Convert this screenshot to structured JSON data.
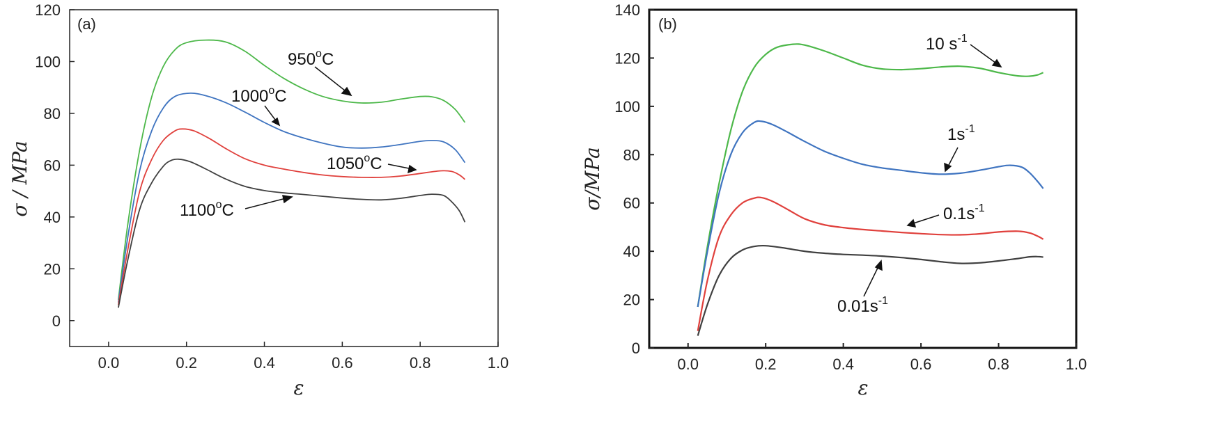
{
  "chart_data": [
    {
      "type": "line",
      "panel_label": "(a)",
      "xlabel": "ε",
      "ylabel": "σ / MPa",
      "xlim": [
        -0.1,
        1.0
      ],
      "ylim": [
        -10,
        120
      ],
      "xticks": [
        0.0,
        0.2,
        0.4,
        0.6,
        0.8,
        1.0
      ],
      "xtick_labels": [
        "0.0",
        "0.2",
        "0.4",
        "0.6",
        "0.8",
        "1.0"
      ],
      "yticks": [
        0,
        20,
        40,
        60,
        80,
        100,
        120
      ],
      "ytick_labels": [
        "0",
        "20",
        "40",
        "60",
        "80",
        "100",
        "120"
      ],
      "grid": false,
      "series": [
        {
          "label_main": "950",
          "label_sup": "o",
          "label_tail": "C",
          "color": "#4db84a",
          "points": [
            [
              0.025,
              8
            ],
            [
              0.05,
              38
            ],
            [
              0.08,
              66
            ],
            [
              0.11,
              86
            ],
            [
              0.14,
              98
            ],
            [
              0.17,
              104.5
            ],
            [
              0.2,
              107.3
            ],
            [
              0.25,
              108.3
            ],
            [
              0.3,
              107.6
            ],
            [
              0.35,
              104
            ],
            [
              0.4,
              98.5
            ],
            [
              0.45,
              93.5
            ],
            [
              0.5,
              89.5
            ],
            [
              0.55,
              86.5
            ],
            [
              0.6,
              84.8
            ],
            [
              0.65,
              84
            ],
            [
              0.7,
              84.3
            ],
            [
              0.75,
              85.5
            ],
            [
              0.8,
              86.5
            ],
            [
              0.83,
              86.4
            ],
            [
              0.86,
              85
            ],
            [
              0.89,
              81.5
            ],
            [
              0.915,
              76.5
            ]
          ]
        },
        {
          "label_main": "1000",
          "label_sup": "o",
          "label_tail": "C",
          "color": "#3f74c0",
          "points": [
            [
              0.025,
              7
            ],
            [
              0.05,
              33
            ],
            [
              0.08,
              58
            ],
            [
              0.11,
              73
            ],
            [
              0.14,
              82
            ],
            [
              0.17,
              86.5
            ],
            [
              0.21,
              87.8
            ],
            [
              0.25,
              86.8
            ],
            [
              0.3,
              84.2
            ],
            [
              0.35,
              80.5
            ],
            [
              0.4,
              76.5
            ],
            [
              0.45,
              73
            ],
            [
              0.5,
              70.5
            ],
            [
              0.55,
              68.5
            ],
            [
              0.6,
              67
            ],
            [
              0.65,
              66.6
            ],
            [
              0.7,
              67
            ],
            [
              0.75,
              68
            ],
            [
              0.8,
              69.2
            ],
            [
              0.83,
              69.5
            ],
            [
              0.86,
              69
            ],
            [
              0.89,
              66
            ],
            [
              0.915,
              61
            ]
          ]
        },
        {
          "label_main": "1050",
          "label_sup": "o",
          "label_tail": "C",
          "color": "#e0403c",
          "points": [
            [
              0.025,
              6
            ],
            [
              0.05,
              28
            ],
            [
              0.08,
              50
            ],
            [
              0.11,
              62
            ],
            [
              0.14,
              69.5
            ],
            [
              0.17,
              73.2
            ],
            [
              0.19,
              74
            ],
            [
              0.22,
              73.2
            ],
            [
              0.26,
              70.2
            ],
            [
              0.3,
              66.5
            ],
            [
              0.35,
              62.5
            ],
            [
              0.4,
              60
            ],
            [
              0.45,
              58.5
            ],
            [
              0.5,
              57.2
            ],
            [
              0.55,
              56.2
            ],
            [
              0.6,
              55.6
            ],
            [
              0.65,
              55.3
            ],
            [
              0.7,
              55.3
            ],
            [
              0.75,
              55.8
            ],
            [
              0.8,
              56.8
            ],
            [
              0.85,
              57.8
            ],
            [
              0.88,
              57.6
            ],
            [
              0.9,
              56.3
            ],
            [
              0.915,
              54.5
            ]
          ]
        },
        {
          "label_main": "1100",
          "label_sup": "o",
          "label_tail": "C",
          "color": "#404040",
          "points": [
            [
              0.025,
              5
            ],
            [
              0.05,
              24
            ],
            [
              0.08,
              43
            ],
            [
              0.11,
              53
            ],
            [
              0.14,
              59.5
            ],
            [
              0.16,
              61.8
            ],
            [
              0.18,
              62.3
            ],
            [
              0.21,
              61.3
            ],
            [
              0.25,
              58.5
            ],
            [
              0.3,
              54.7
            ],
            [
              0.35,
              51.8
            ],
            [
              0.4,
              50.2
            ],
            [
              0.45,
              49.3
            ],
            [
              0.5,
              48.7
            ],
            [
              0.55,
              48
            ],
            [
              0.6,
              47.3
            ],
            [
              0.65,
              46.8
            ],
            [
              0.7,
              46.6
            ],
            [
              0.75,
              47.2
            ],
            [
              0.8,
              48.3
            ],
            [
              0.83,
              48.8
            ],
            [
              0.86,
              48.3
            ],
            [
              0.88,
              46
            ],
            [
              0.9,
              42.5
            ],
            [
              0.915,
              38
            ]
          ]
        }
      ]
    },
    {
      "type": "line",
      "panel_label": "(b)",
      "xlabel": "ε",
      "ylabel": "σ/MPa",
      "xlim": [
        -0.1,
        1.0
      ],
      "ylim": [
        0,
        140
      ],
      "xticks": [
        0.0,
        0.2,
        0.4,
        0.6,
        0.8,
        1.0
      ],
      "xtick_labels": [
        "0.0",
        "0.2",
        "0.4",
        "0.6",
        "0.8",
        "1.0"
      ],
      "yticks": [
        0,
        20,
        40,
        60,
        80,
        100,
        120,
        140
      ],
      "ytick_labels": [
        "0",
        "20",
        "40",
        "60",
        "80",
        "100",
        "120",
        "140"
      ],
      "grid": false,
      "series": [
        {
          "label_main": "10 s",
          "label_sup": "-1",
          "label_tail": "",
          "color": "#4db84a",
          "points": [
            [
              0.025,
              17
            ],
            [
              0.05,
              42
            ],
            [
              0.08,
              68
            ],
            [
              0.11,
              90
            ],
            [
              0.14,
              106
            ],
            [
              0.17,
              116
            ],
            [
              0.2,
              121.5
            ],
            [
              0.23,
              124.5
            ],
            [
              0.27,
              125.7
            ],
            [
              0.3,
              125.4
            ],
            [
              0.35,
              123
            ],
            [
              0.4,
              120
            ],
            [
              0.45,
              117
            ],
            [
              0.5,
              115.5
            ],
            [
              0.55,
              115.2
            ],
            [
              0.6,
              115.6
            ],
            [
              0.65,
              116.3
            ],
            [
              0.7,
              116.6
            ],
            [
              0.75,
              115.8
            ],
            [
              0.8,
              114
            ],
            [
              0.85,
              112.6
            ],
            [
              0.88,
              112.5
            ],
            [
              0.9,
              113
            ],
            [
              0.915,
              114
            ]
          ]
        },
        {
          "label_main": "1s",
          "label_sup": "-1",
          "label_tail": "",
          "color": "#3f74c0",
          "points": [
            [
              0.025,
              17
            ],
            [
              0.05,
              40
            ],
            [
              0.08,
              64
            ],
            [
              0.11,
              80
            ],
            [
              0.14,
              89
            ],
            [
              0.17,
              93.3
            ],
            [
              0.19,
              93.8
            ],
            [
              0.22,
              92.3
            ],
            [
              0.26,
              89
            ],
            [
              0.3,
              85.5
            ],
            [
              0.35,
              81.5
            ],
            [
              0.4,
              78.5
            ],
            [
              0.45,
              76
            ],
            [
              0.5,
              74.5
            ],
            [
              0.55,
              73.5
            ],
            [
              0.6,
              72.5
            ],
            [
              0.65,
              71.9
            ],
            [
              0.7,
              72.3
            ],
            [
              0.75,
              73.5
            ],
            [
              0.8,
              75
            ],
            [
              0.83,
              75.6
            ],
            [
              0.86,
              74.8
            ],
            [
              0.88,
              72.5
            ],
            [
              0.9,
              69
            ],
            [
              0.915,
              66
            ]
          ]
        },
        {
          "label_main": "0.1s",
          "label_sup": "-1",
          "label_tail": "",
          "color": "#e0403c",
          "points": [
            [
              0.025,
              7
            ],
            [
              0.05,
              28
            ],
            [
              0.08,
              46
            ],
            [
              0.11,
              55
            ],
            [
              0.14,
              60
            ],
            [
              0.17,
              62
            ],
            [
              0.19,
              62.2
            ],
            [
              0.22,
              60.5
            ],
            [
              0.26,
              57
            ],
            [
              0.3,
              53.5
            ],
            [
              0.35,
              51
            ],
            [
              0.4,
              49.8
            ],
            [
              0.45,
              49
            ],
            [
              0.5,
              48.4
            ],
            [
              0.55,
              47.8
            ],
            [
              0.6,
              47.3
            ],
            [
              0.65,
              46.9
            ],
            [
              0.7,
              46.8
            ],
            [
              0.75,
              47.2
            ],
            [
              0.8,
              48
            ],
            [
              0.85,
              48.3
            ],
            [
              0.88,
              47.6
            ],
            [
              0.9,
              46.3
            ],
            [
              0.915,
              45
            ]
          ]
        },
        {
          "label_main": "0.01s",
          "label_sup": "-1",
          "label_tail": "",
          "color": "#404040",
          "points": [
            [
              0.025,
              5
            ],
            [
              0.05,
              18
            ],
            [
              0.08,
              30
            ],
            [
              0.11,
              37
            ],
            [
              0.14,
              40.5
            ],
            [
              0.17,
              42
            ],
            [
              0.2,
              42.3
            ],
            [
              0.25,
              41.3
            ],
            [
              0.3,
              40
            ],
            [
              0.35,
              39.2
            ],
            [
              0.4,
              38.7
            ],
            [
              0.45,
              38.4
            ],
            [
              0.5,
              38
            ],
            [
              0.55,
              37.4
            ],
            [
              0.6,
              36.6
            ],
            [
              0.65,
              35.7
            ],
            [
              0.7,
              35
            ],
            [
              0.75,
              35.2
            ],
            [
              0.8,
              36
            ],
            [
              0.85,
              37
            ],
            [
              0.88,
              37.7
            ],
            [
              0.9,
              37.8
            ],
            [
              0.915,
              37.6
            ]
          ]
        }
      ]
    }
  ]
}
